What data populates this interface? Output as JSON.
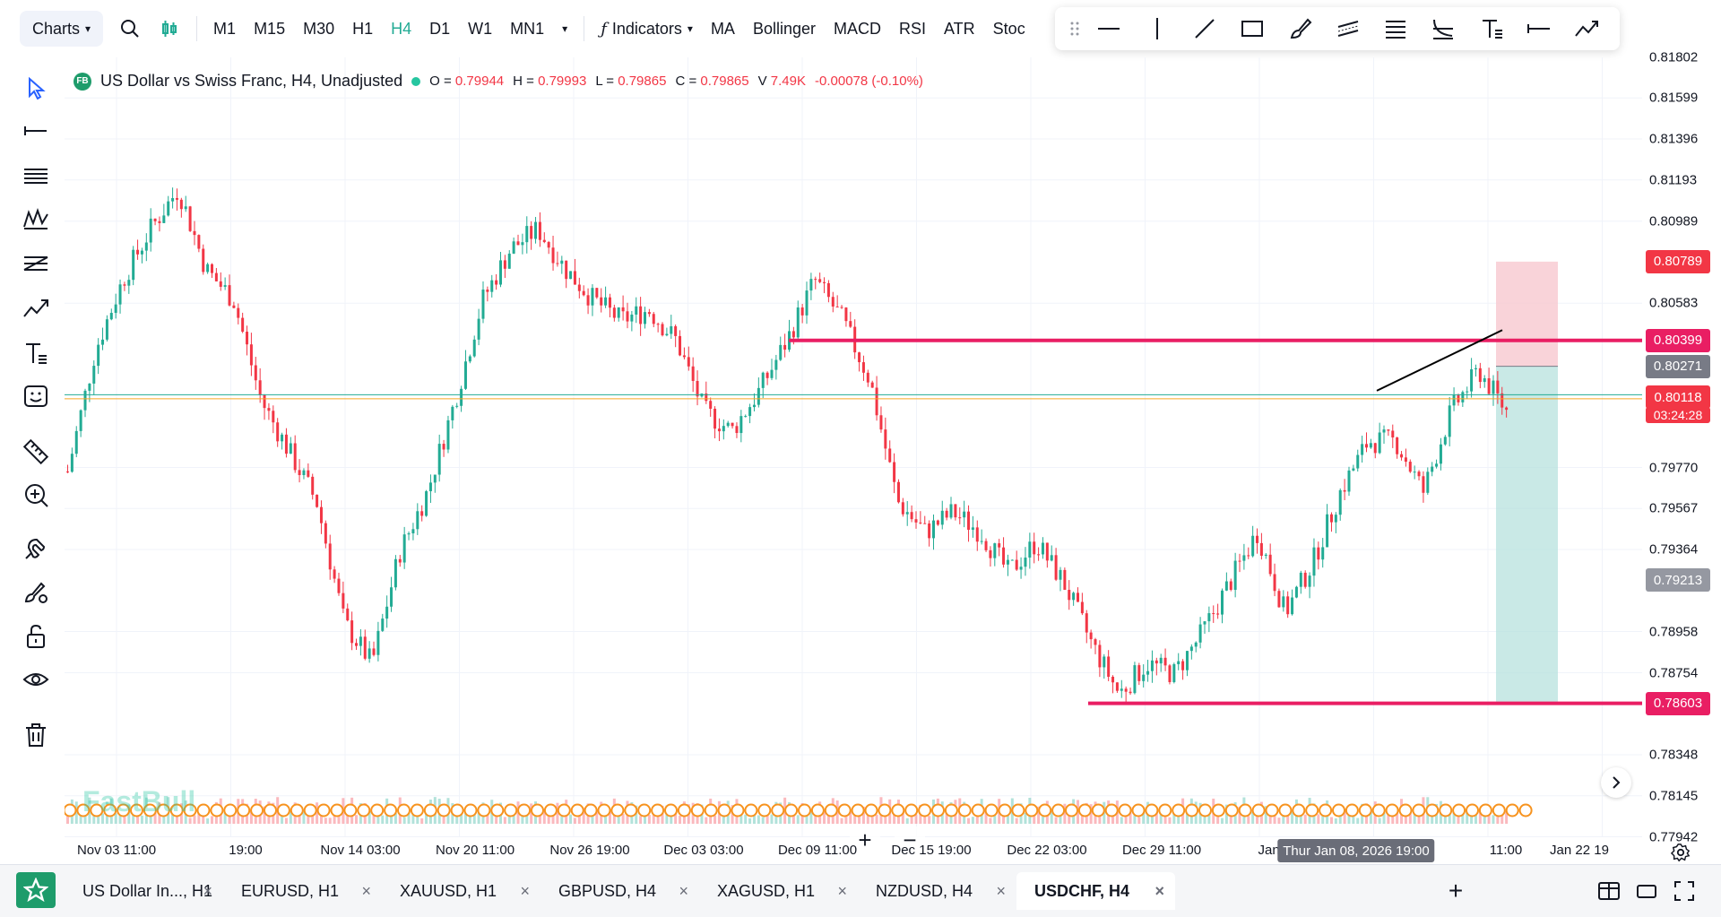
{
  "topbar": {
    "charts_label": "Charts",
    "timeframes": [
      "M1",
      "M15",
      "M30",
      "H1",
      "H4",
      "D1",
      "W1",
      "MN1"
    ],
    "active_timeframe": "H4",
    "indicators_label": "Indicators",
    "quick_indicators": [
      "MA",
      "Bollinger",
      "MACD",
      "RSI",
      "ATR",
      "Stoc"
    ]
  },
  "legend": {
    "badge": "FB",
    "title": "US Dollar vs Swiss Franc, H4, Unadjusted",
    "open_label": "O =",
    "open": "0.79944",
    "high_label": "H =",
    "high": "0.79993",
    "low_label": "L =",
    "low": "0.79865",
    "close_label": "C =",
    "close": "0.79865",
    "volume_label": "V",
    "volume": "7.49K",
    "change": "-0.00078 (-0.10%)"
  },
  "price_axis": {
    "labels": [
      "0.81802",
      "0.81599",
      "0.81396",
      "0.81193",
      "0.80989",
      "0.80583",
      "0.79770",
      "0.79567",
      "0.79364",
      "0.78958",
      "0.78754",
      "0.78348",
      "0.78145",
      "0.77942"
    ],
    "tags": {
      "stop": "0.80789",
      "resistance": "0.80399",
      "entry": "0.80271",
      "current": "0.80118",
      "countdown": "03:24:28",
      "mid": "0.79213",
      "target": "0.78603"
    }
  },
  "time_axis": {
    "labels": [
      "Nov 03 11:00",
      "19:00",
      "Nov 14 03:00",
      "Nov 20 11:00",
      "Nov 26 19:00",
      "Dec 03 03:00",
      "Dec 09 11:00",
      "Dec 15 19:00",
      "Dec 22 03:00",
      "Dec 29 11:00",
      "Jan 05",
      "11:00",
      "Jan 22 19"
    ],
    "crosshair": "Thur Jan 08, 2026 19:00"
  },
  "zoom": {
    "plus": "+",
    "minus": "−"
  },
  "watermark": "FastBull",
  "colors": {
    "up": "#22ab94",
    "down": "#f23645",
    "level_line": "#e91e63",
    "tp_zone": "#b2dfdb",
    "sl_zone": "#f8c8cf",
    "active": "#22ab94"
  },
  "tabs": [
    {
      "label": "US Dollar In..., H1",
      "active": false
    },
    {
      "label": "EURUSD, H1",
      "active": false
    },
    {
      "label": "XAUUSD, H1",
      "active": false
    },
    {
      "label": "GBPUSD, H4",
      "active": false
    },
    {
      "label": "XAGUSD, H1",
      "active": false
    },
    {
      "label": "NZDUSD, H4",
      "active": false
    },
    {
      "label": "USDCHF, H4",
      "active": true
    }
  ],
  "tab_close": "×",
  "add_tab": "+",
  "chart_data": {
    "type": "candlestick",
    "title": "US Dollar vs Swiss Franc, H4, Unadjusted",
    "ylim": [
      0.7794,
      0.818
    ],
    "close_path": [
      0.7975,
      0.8035,
      0.807,
      0.8095,
      0.8115,
      0.8075,
      0.806,
      0.801,
      0.7985,
      0.796,
      0.79,
      0.788,
      0.7935,
      0.7965,
      0.801,
      0.806,
      0.8085,
      0.8095,
      0.8075,
      0.806,
      0.805,
      0.8055,
      0.804,
      0.8005,
      0.7995,
      0.8015,
      0.804,
      0.807,
      0.805,
      0.802,
      0.796,
      0.7945,
      0.7955,
      0.7945,
      0.7925,
      0.794,
      0.792,
      0.789,
      0.7865,
      0.788,
      0.7875,
      0.7895,
      0.792,
      0.7945,
      0.7905,
      0.793,
      0.7965,
      0.799,
      0.799,
      0.7965,
      0.8005,
      0.8025,
      0.8005
    ],
    "levels": {
      "resistance": 0.80399,
      "support": 0.78603,
      "entry": 0.80271,
      "stop": 0.80789,
      "current": 0.80118
    }
  }
}
